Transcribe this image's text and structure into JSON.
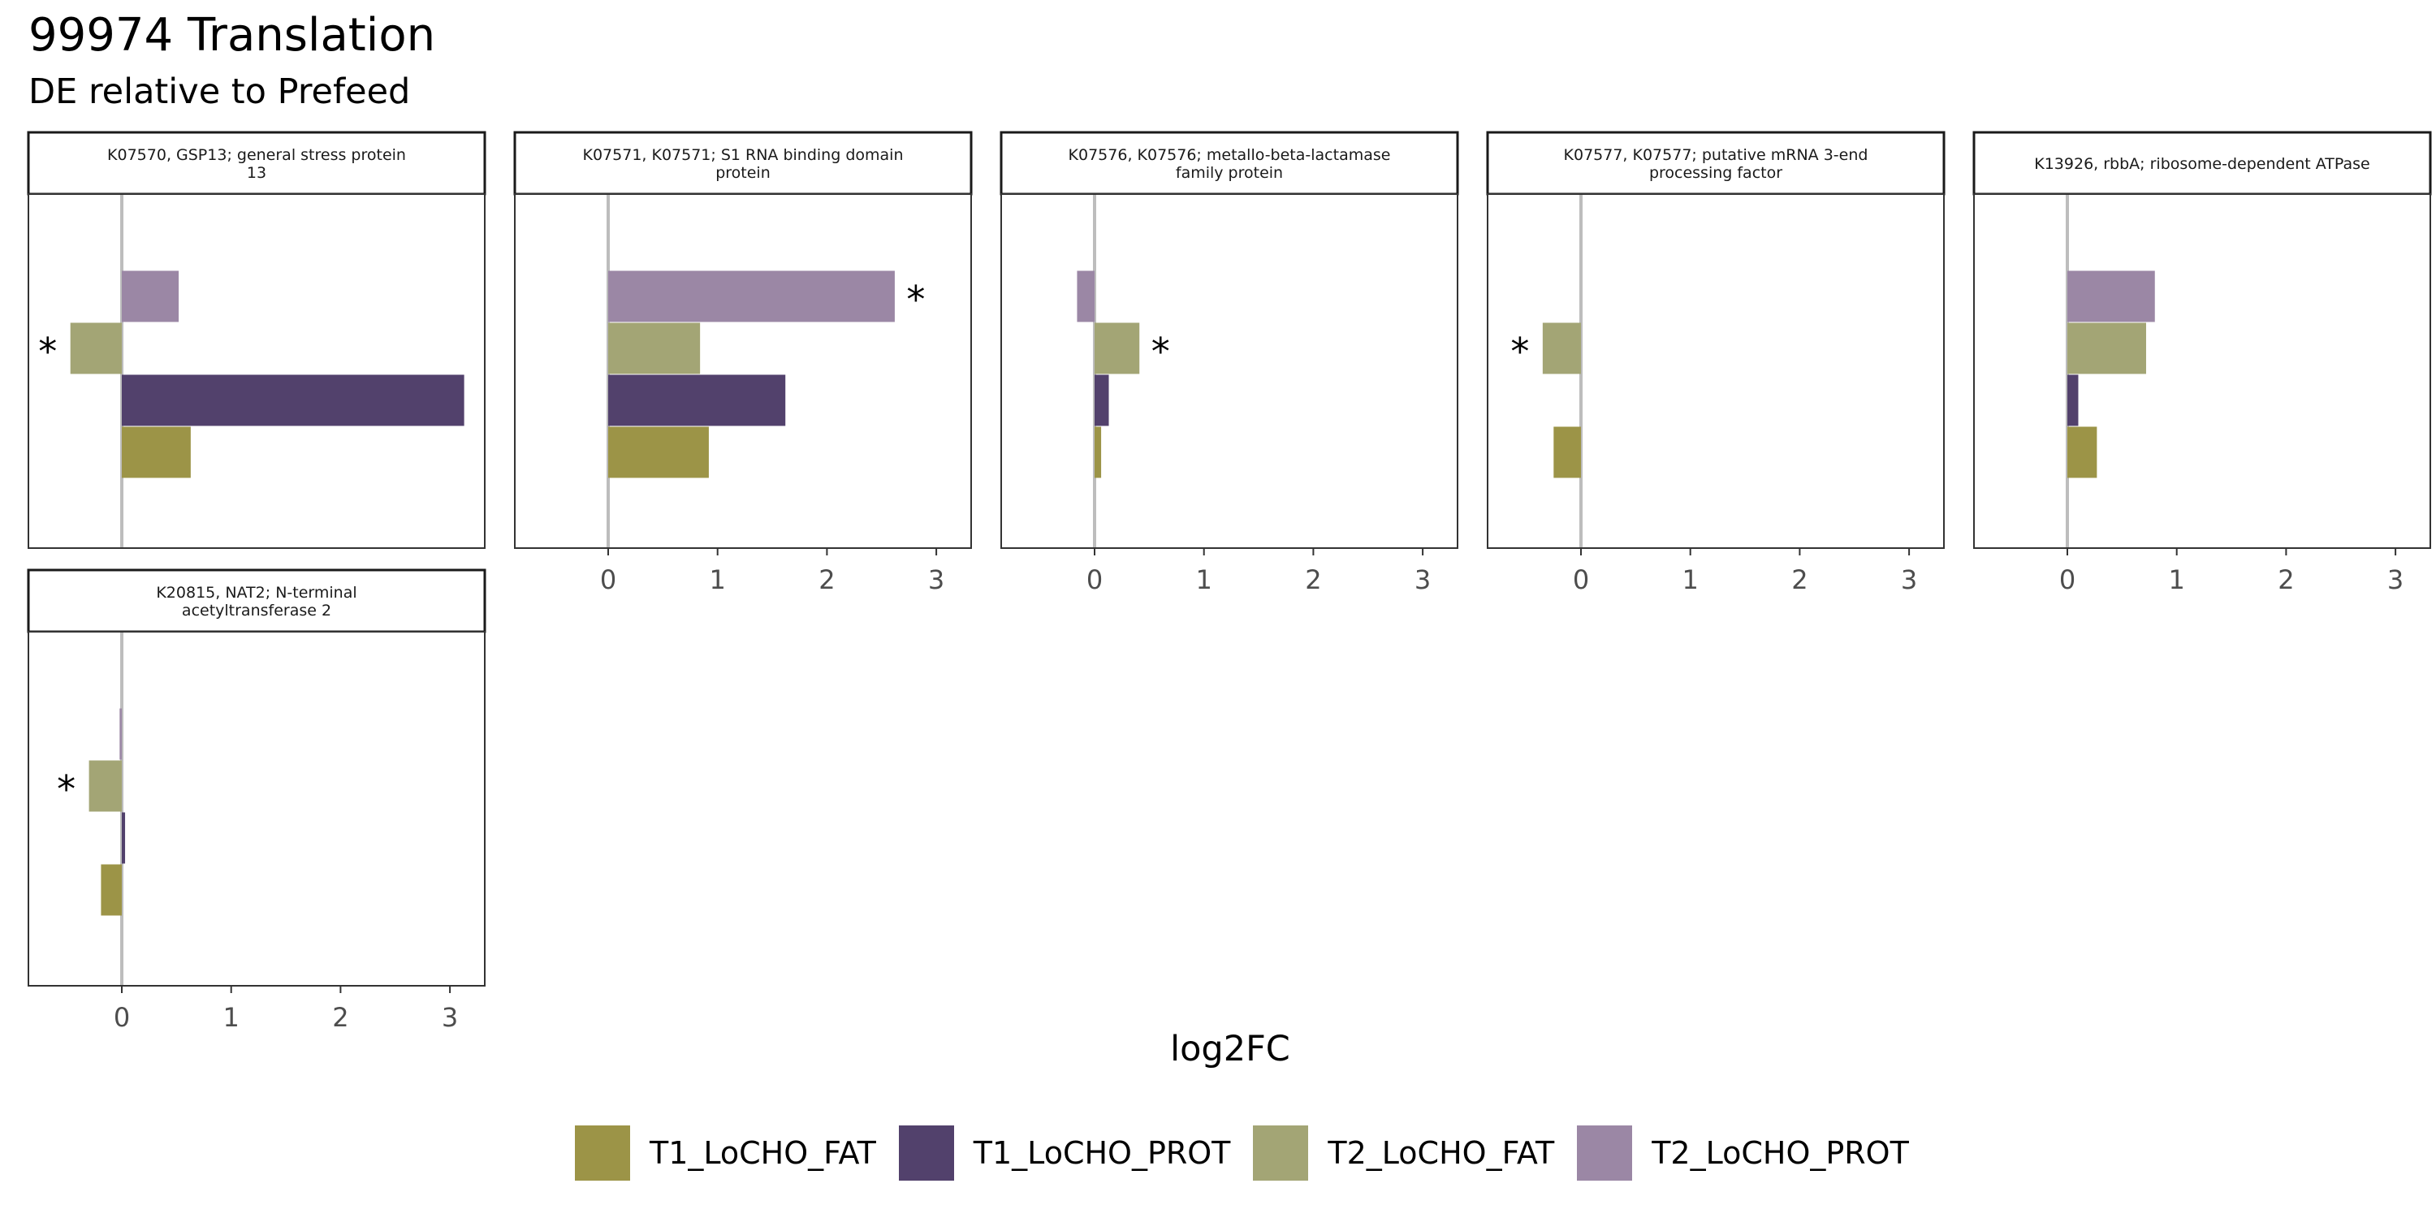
{
  "chart_data": {
    "type": "bar",
    "orientation": "horizontal",
    "title": "99974 Translation",
    "subtitle": "DE relative to Prefeed",
    "xlabel": "log2FC",
    "ylabel": "",
    "xlim": [
      -0.85,
      3.3
    ],
    "x_ticks": [
      "0",
      "1",
      "2",
      "3"
    ],
    "grid": false,
    "legend_position": "bottom",
    "significance_marker": "*",
    "series": [
      {
        "name": "T1_LoCHO_FAT",
        "color": "#9c9447"
      },
      {
        "name": "T1_LoCHO_PROT",
        "color": "#52416c"
      },
      {
        "name": "T2_LoCHO_FAT",
        "color": "#a3a575"
      },
      {
        "name": "T2_LoCHO_PROT",
        "color": "#9b87a5"
      }
    ],
    "panels": [
      {
        "title": "K07570, GSP13; general stress protein 13",
        "title_lines": [
          "K07570, GSP13; general stress protein",
          "13"
        ],
        "values": [
          0.63,
          3.13,
          -0.47,
          0.52
        ],
        "significant": [
          false,
          false,
          true,
          false
        ]
      },
      {
        "title": "K07571, K07571; S1 RNA binding domain protein",
        "title_lines": [
          "K07571, K07571; S1 RNA binding domain",
          "protein"
        ],
        "values": [
          0.92,
          1.62,
          0.84,
          2.62
        ],
        "significant": [
          false,
          false,
          false,
          true
        ]
      },
      {
        "title": "K07576, K07576; metallo-beta-lactamase family protein",
        "title_lines": [
          "K07576, K07576; metallo-beta-lactamase",
          "family protein"
        ],
        "values": [
          0.06,
          0.13,
          0.41,
          -0.16
        ],
        "significant": [
          false,
          false,
          true,
          false
        ]
      },
      {
        "title": "K07577, K07577; putative mRNA 3-end processing factor",
        "title_lines": [
          "K07577, K07577; putative mRNA 3-end",
          "processing factor"
        ],
        "values": [
          -0.25,
          0,
          -0.35,
          0
        ],
        "significant": [
          false,
          false,
          true,
          false
        ]
      },
      {
        "title": "K13926, rbbA; ribosome-dependent ATPase",
        "title_lines": [
          "K13926, rbbA; ribosome-dependent ATPase"
        ],
        "values": [
          0.27,
          0.1,
          0.72,
          0.8
        ],
        "significant": [
          false,
          false,
          false,
          false
        ]
      },
      {
        "title": "K20815, NAT2; N-terminal acetyltransferase 2",
        "title_lines": [
          "K20815, NAT2; N-terminal",
          "acetyltransferase 2"
        ],
        "values": [
          -0.19,
          0.03,
          -0.3,
          -0.02
        ],
        "significant": [
          false,
          false,
          true,
          false
        ]
      }
    ]
  }
}
